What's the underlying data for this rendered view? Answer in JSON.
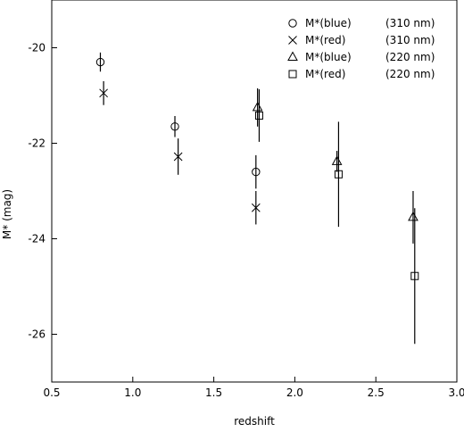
{
  "chart_data": {
    "type": "scatter",
    "xlabel": "redshift",
    "ylabel": "M* (mag)",
    "xlim": [
      0.5,
      3.0
    ],
    "ylim": [
      -27,
      -19
    ],
    "y_inverted": true,
    "xticks": [
      0.5,
      1.0,
      1.5,
      2.0,
      2.5,
      3.0
    ],
    "yticks": [
      -20,
      -22,
      -24,
      -26
    ],
    "xtick_labels": [
      "0.5",
      "1.0",
      "1.5",
      "2.0",
      "2.5",
      "3.0"
    ],
    "ytick_labels": [
      "-20",
      "-22",
      "-24",
      "-26"
    ],
    "grid": false,
    "legend_position": "top-right",
    "series": [
      {
        "name": "M*(blue)",
        "wavelength": "(310 nm)",
        "marker": "circle",
        "points": [
          {
            "x": 0.8,
            "y": -20.3,
            "err": 0.2
          },
          {
            "x": 1.26,
            "y": -21.65,
            "err": 0.22
          },
          {
            "x": 1.76,
            "y": -22.6,
            "err": 0.35
          }
        ]
      },
      {
        "name": "M*(red)",
        "wavelength": "(310 nm)",
        "marker": "cross",
        "points": [
          {
            "x": 0.82,
            "y": -20.95,
            "err": 0.25
          },
          {
            "x": 1.28,
            "y": -22.28,
            "err": 0.38
          },
          {
            "x": 1.76,
            "y": -23.35,
            "err": 0.35
          }
        ]
      },
      {
        "name": "M*(blue)",
        "wavelength": "(220 nm)",
        "marker": "triangle",
        "points": [
          {
            "x": 1.77,
            "y": -21.25,
            "err": 0.4
          },
          {
            "x": 2.26,
            "y": -22.38,
            "err": 0.22
          },
          {
            "x": 2.73,
            "y": -23.55,
            "err": 0.55
          }
        ]
      },
      {
        "name": "M*(red)",
        "wavelength": "(220 nm)",
        "marker": "square",
        "points": [
          {
            "x": 1.78,
            "y": -21.42,
            "err": 0.55
          },
          {
            "x": 2.27,
            "y": -22.65,
            "err": 1.1
          },
          {
            "x": 2.74,
            "y": -24.78,
            "err": 1.42
          }
        ]
      }
    ]
  }
}
